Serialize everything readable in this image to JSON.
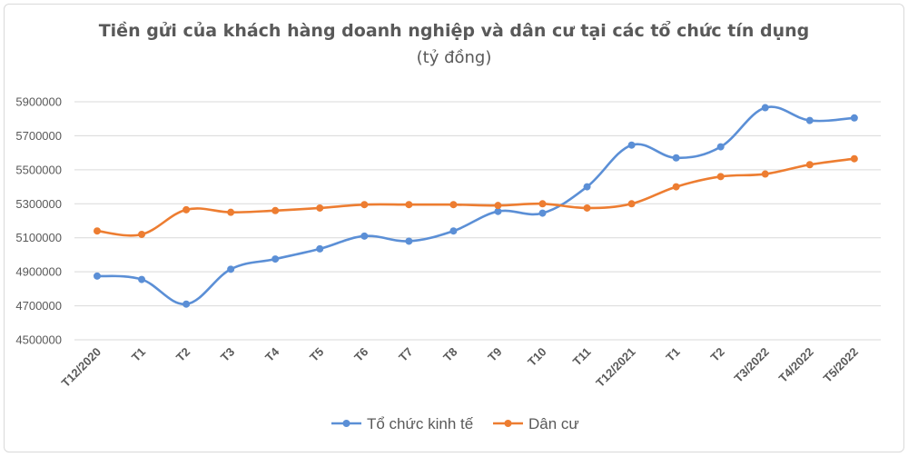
{
  "chart_data": {
    "type": "line",
    "title": "Tiền gửi của khách hàng doanh nghiệp và dân cư tại các tổ chức tín dụng",
    "subtitle": "(tỷ đồng)",
    "categories": [
      "T12/2020",
      "T1",
      "T2",
      "T3",
      "T4",
      "T5",
      "T6",
      "T7",
      "T8",
      "T9",
      "T10",
      "T11",
      "T12/2021",
      "T1",
      "T2",
      "T3/2022",
      "T4/2022",
      "T5/2022"
    ],
    "ylim": [
      4500000,
      5900000
    ],
    "yticks": [
      "4500000",
      "4700000",
      "4900000",
      "5100000",
      "5300000",
      "5500000",
      "5700000",
      "5900000"
    ],
    "grid": true,
    "legend_position": "bottom",
    "series": [
      {
        "name": "Tổ chức kinh tế",
        "color": "#5b8fd6",
        "values": [
          4875000,
          4855000,
          4710000,
          4915000,
          4975000,
          5035000,
          5110000,
          5080000,
          5140000,
          5255000,
          5245000,
          5400000,
          5645000,
          5570000,
          5635000,
          5865000,
          5790000,
          5805000
        ]
      },
      {
        "name": "Dân cư",
        "color": "#ed7d31",
        "values": [
          5140000,
          5120000,
          5265000,
          5250000,
          5260000,
          5275000,
          5295000,
          5295000,
          5295000,
          5290000,
          5300000,
          5275000,
          5300000,
          5400000,
          5460000,
          5475000,
          5530000,
          5565000
        ]
      }
    ]
  }
}
